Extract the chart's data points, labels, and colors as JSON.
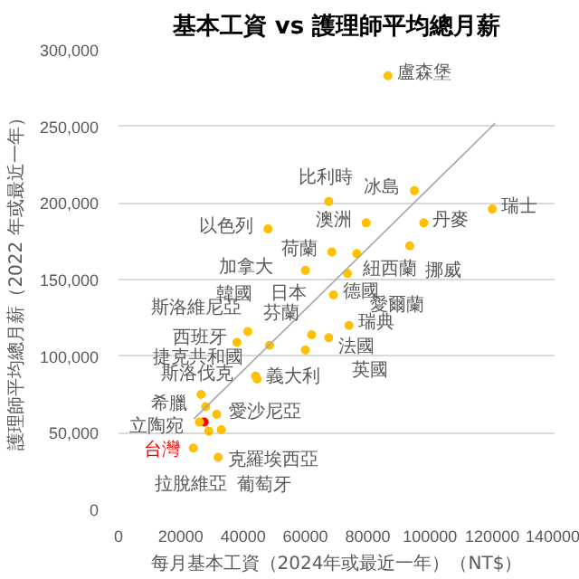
{
  "chart_data": {
    "type": "scatter",
    "title": "基本工資 vs 護理師平均總月薪",
    "xlabel": "每月基本工資（2024年或最近一年）（NT$）",
    "ylabel": "護理師平均總月薪（2022 年或最近一年）",
    "xlim": [
      0,
      140000
    ],
    "xticks": [
      0,
      20000,
      40000,
      60000,
      80000,
      100000,
      120000,
      140000
    ],
    "ylim": [
      0,
      300000
    ],
    "yticks": [
      {
        "value": 0,
        "label": "0"
      },
      {
        "value": 50000,
        "label": "50,000"
      },
      {
        "value": 100000,
        "label": "100,000"
      },
      {
        "value": 150000,
        "label": "150,000"
      },
      {
        "value": 200000,
        "label": "200,000"
      },
      {
        "value": 250000,
        "label": "250,000"
      },
      {
        "value": 300000,
        "label": "300,000"
      }
    ],
    "grid": "y",
    "series": [
      {
        "marker": "circle",
        "color": "#ffc000",
        "x": [
          86500,
          95000,
          120000,
          67500,
          79500,
          98000,
          48000,
          68500,
          93500,
          76500,
          60000,
          73500,
          69000,
          74000,
          62000,
          67500,
          60000,
          41500,
          38000,
          48500,
          44000,
          44500,
          26500,
          28000,
          31500,
          27500,
          26000,
          29000,
          33000,
          24000,
          32000
        ],
        "values": [
          283000,
          208000,
          196000,
          201000,
          187000,
          187000,
          183000,
          168000,
          172000,
          167000,
          156000,
          154000,
          140000,
          120000,
          114000,
          112000,
          104000,
          116000,
          109000,
          107000,
          87000,
          85000,
          75000,
          67000,
          62000,
          57000,
          57000,
          51000,
          52000,
          40000,
          34000
        ],
        "colors": [
          "#ffc000",
          "#ffc000",
          "#ffc000",
          "#ffc000",
          "#ffc000",
          "#ffc000",
          "#ffc000",
          "#ffc000",
          "#ffc000",
          "#ffc000",
          "#ffc000",
          "#ffc000",
          "#ffc000",
          "#ffc000",
          "#ffc000",
          "#ffc000",
          "#ffc000",
          "#ffc000",
          "#ffc000",
          "#ffc000",
          "#ffc000",
          "#ffc000",
          "#ffc000",
          "#ffc000",
          "#ffc000",
          "#ff0000",
          "#ffc000",
          "#ffc000",
          "#ffc000",
          "#ffc000",
          "#ffc000"
        ]
      },
      {
        "type": "line",
        "color": "#a6a6a6",
        "x": [
          24200,
          120900
        ],
        "values": [
          59000,
          252000
        ]
      }
    ],
    "annotations": [
      {
        "text": "盧森堡",
        "x": 86500,
        "y": 283000
      },
      {
        "text": "冰島",
        "x": 95000,
        "y": 208000
      },
      {
        "text": "瑞士",
        "x": 120000,
        "y": 196000
      },
      {
        "text": "比利時",
        "x": 67500,
        "y": 201000
      },
      {
        "text": "澳洲",
        "x": 79500,
        "y": 187000
      },
      {
        "text": "丹麥",
        "x": 98000,
        "y": 187000
      },
      {
        "text": "以色列",
        "x": 48000,
        "y": 183000
      },
      {
        "text": "荷蘭",
        "x": 68500,
        "y": 168000
      },
      {
        "text": "挪威",
        "x": 93500,
        "y": 172000
      },
      {
        "text": "紐西蘭",
        "x": 76500,
        "y": 167000
      },
      {
        "text": "加拿大",
        "x": 60000,
        "y": 156000
      },
      {
        "text": "愛爾蘭",
        "x": 73500,
        "y": 154000
      },
      {
        "text": "德國",
        "x": 69000,
        "y": 140000
      },
      {
        "text": "瑞典",
        "x": 74000,
        "y": 120000
      },
      {
        "text": "芬蘭",
        "x": 62000,
        "y": 114000
      },
      {
        "text": "英國",
        "x": 67500,
        "y": 112000
      },
      {
        "text": "法國",
        "x": 60000,
        "y": 104000
      },
      {
        "text": "日本",
        "x": 41500,
        "y": 116000
      },
      {
        "text": "韓國",
        "x": 38000,
        "y": 109000
      },
      {
        "text": "斯洛維尼亞",
        "x": 48500,
        "y": 107000
      },
      {
        "text": "西班牙",
        "x": 44000,
        "y": 87000
      },
      {
        "text": "義大利",
        "x": 44500,
        "y": 85000
      },
      {
        "text": "捷克共和國",
        "x": 26500,
        "y": 75000
      },
      {
        "text": "希臘",
        "x": 28000,
        "y": 67000
      },
      {
        "text": "愛沙尼亞",
        "x": 31500,
        "y": 62000
      },
      {
        "text": "台灣",
        "x": 27500,
        "y": 57000
      },
      {
        "text": "斯洛伐克",
        "x": 26000,
        "y": 57000
      },
      {
        "text": "克羅埃西亞",
        "x": 29000,
        "y": 51000
      },
      {
        "text": "立陶宛",
        "x": 33000,
        "y": 52000
      },
      {
        "text": "拉脫維亞",
        "x": 24000,
        "y": 40000
      },
      {
        "text": "葡萄牙",
        "x": 32000,
        "y": 34000
      }
    ]
  }
}
